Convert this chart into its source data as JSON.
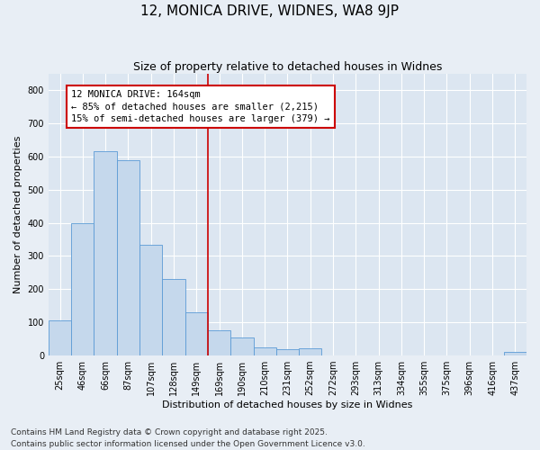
{
  "title": "12, MONICA DRIVE, WIDNES, WA8 9JP",
  "subtitle": "Size of property relative to detached houses in Widnes",
  "xlabel": "Distribution of detached houses by size in Widnes",
  "ylabel": "Number of detached properties",
  "categories": [
    "25sqm",
    "46sqm",
    "66sqm",
    "87sqm",
    "107sqm",
    "128sqm",
    "149sqm",
    "169sqm",
    "190sqm",
    "210sqm",
    "231sqm",
    "252sqm",
    "272sqm",
    "293sqm",
    "313sqm",
    "334sqm",
    "355sqm",
    "375sqm",
    "396sqm",
    "416sqm",
    "437sqm"
  ],
  "values": [
    105,
    400,
    615,
    590,
    335,
    230,
    130,
    75,
    55,
    25,
    20,
    22,
    0,
    0,
    0,
    0,
    0,
    0,
    0,
    0,
    10
  ],
  "bar_color": "#c5d8ec",
  "bar_edge_color": "#5b9bd5",
  "vline_color": "#cc0000",
  "vline_index": 7,
  "annotation_title": "12 MONICA DRIVE: 164sqm",
  "annotation_line1": "← 85% of detached houses are smaller (2,215)",
  "annotation_line2": "15% of semi-detached houses are larger (379) →",
  "annotation_box_color": "#cc0000",
  "footnote1": "Contains HM Land Registry data © Crown copyright and database right 2025.",
  "footnote2": "Contains public sector information licensed under the Open Government Licence v3.0.",
  "ylim": [
    0,
    850
  ],
  "yticks": [
    0,
    100,
    200,
    300,
    400,
    500,
    600,
    700,
    800
  ],
  "bg_color": "#e8eef5",
  "plot_bg_color": "#dce6f1",
  "grid_color": "#ffffff",
  "title_fontsize": 11,
  "subtitle_fontsize": 9,
  "axis_label_fontsize": 8,
  "tick_fontsize": 7,
  "annotation_fontsize": 7.5,
  "footnote_fontsize": 6.5
}
